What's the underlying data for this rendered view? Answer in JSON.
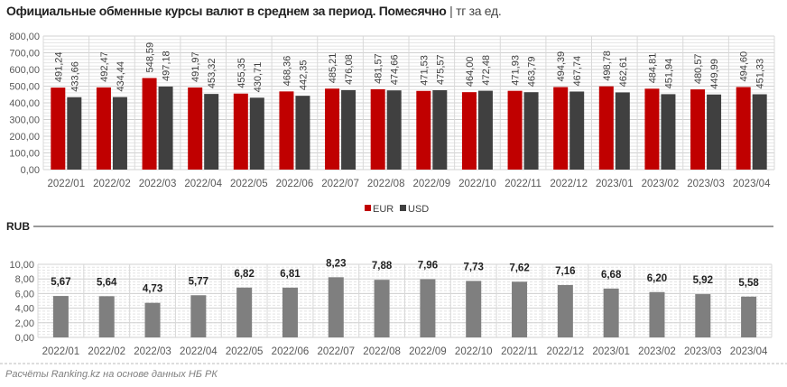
{
  "title": "Официальные обменные курсы валют в среднем за период. Помесячно",
  "unit": "тг за ед.",
  "source": "Расчёты Ranking.kz на основе данных НБ РК",
  "colors": {
    "EUR": "#c00000",
    "USD": "#404040",
    "RUB": "#7f7f7f"
  },
  "chart_data": [
    {
      "type": "bar",
      "categories": [
        "2022/01",
        "2022/02",
        "2022/03",
        "2022/04",
        "2022/05",
        "2022/06",
        "2022/07",
        "2022/08",
        "2022/09",
        "2022/10",
        "2022/11",
        "2022/12",
        "2023/01",
        "2023/02",
        "2023/03",
        "2023/04"
      ],
      "series": [
        {
          "name": "EUR",
          "values": [
            491.24,
            492.47,
            548.59,
            491.97,
            455.35,
            468.36,
            485.21,
            481.57,
            471.53,
            464.0,
            471.93,
            494.39,
            498.78,
            484.81,
            480.57,
            494.6
          ]
        },
        {
          "name": "USD",
          "values": [
            433.66,
            434.44,
            497.18,
            453.32,
            430.71,
            442.35,
            476.08,
            474.66,
            475.57,
            472.48,
            463.79,
            467.74,
            462.61,
            451.94,
            449.99,
            451.33
          ]
        }
      ],
      "yticks": [
        "0,00",
        "100,00",
        "200,00",
        "300,00",
        "400,00",
        "500,00",
        "600,00",
        "700,00",
        "800,00"
      ],
      "ylim": [
        0,
        800
      ],
      "legend": "bottom"
    },
    {
      "type": "bar",
      "title": "RUB",
      "categories": [
        "2022/01",
        "2022/02",
        "2022/03",
        "2022/04",
        "2022/05",
        "2022/06",
        "2022/07",
        "2022/08",
        "2022/09",
        "2022/10",
        "2022/11",
        "2022/12",
        "2023/01",
        "2023/02",
        "2023/03",
        "2023/04"
      ],
      "series": [
        {
          "name": "RUB",
          "values": [
            5.67,
            5.64,
            4.73,
            5.77,
            6.82,
            6.81,
            8.23,
            7.88,
            7.96,
            7.73,
            7.62,
            7.16,
            6.68,
            6.2,
            5.92,
            5.58
          ]
        }
      ],
      "yticks": [
        "0,00",
        "2,00",
        "4,00",
        "6,00",
        "8,00",
        "10,00"
      ],
      "ylim": [
        0,
        10
      ]
    }
  ]
}
